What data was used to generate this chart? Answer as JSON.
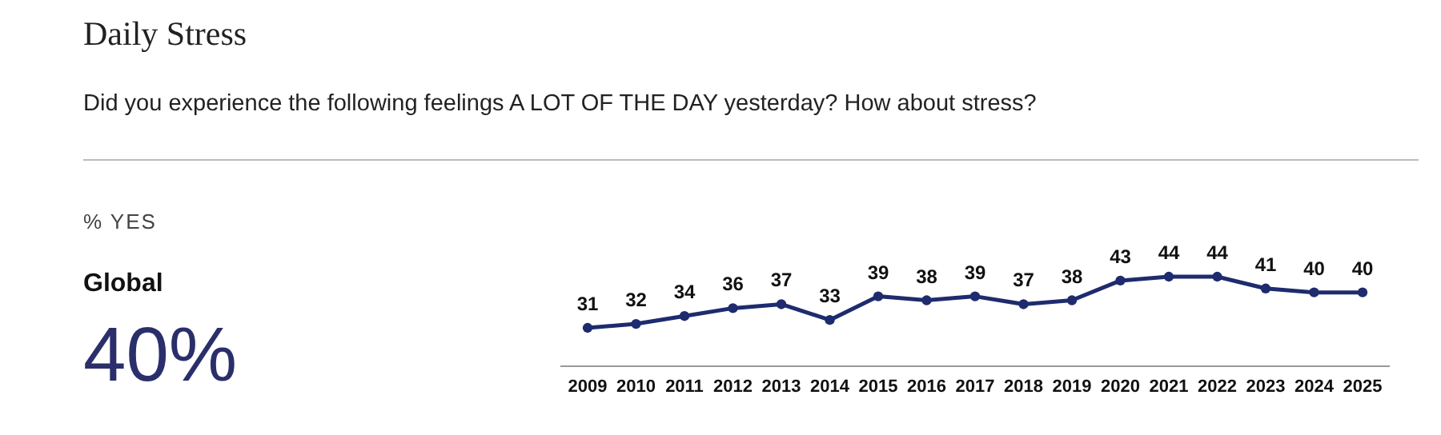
{
  "chart_data": {
    "type": "line",
    "title": "Daily Stress",
    "subtitle": "Did you experience the following feelings A LOT OF THE DAY yesterday? How about stress?",
    "annotations": [
      "% YES",
      "Global",
      "40%"
    ],
    "categories": [
      "2009",
      "2010",
      "2011",
      "2012",
      "2013",
      "2014",
      "2015",
      "2016",
      "2017",
      "2018",
      "2019",
      "2020",
      "2021",
      "2022",
      "2023",
      "2024",
      "2025"
    ],
    "series": [
      {
        "color": "#1e2b6e",
        "values": [
          31,
          32,
          34,
          36,
          37,
          33,
          39,
          38,
          39,
          37,
          38,
          43,
          44,
          44,
          41,
          40,
          40
        ]
      }
    ],
    "data_labels": true,
    "marker": "circle",
    "line_style": "solid"
  }
}
